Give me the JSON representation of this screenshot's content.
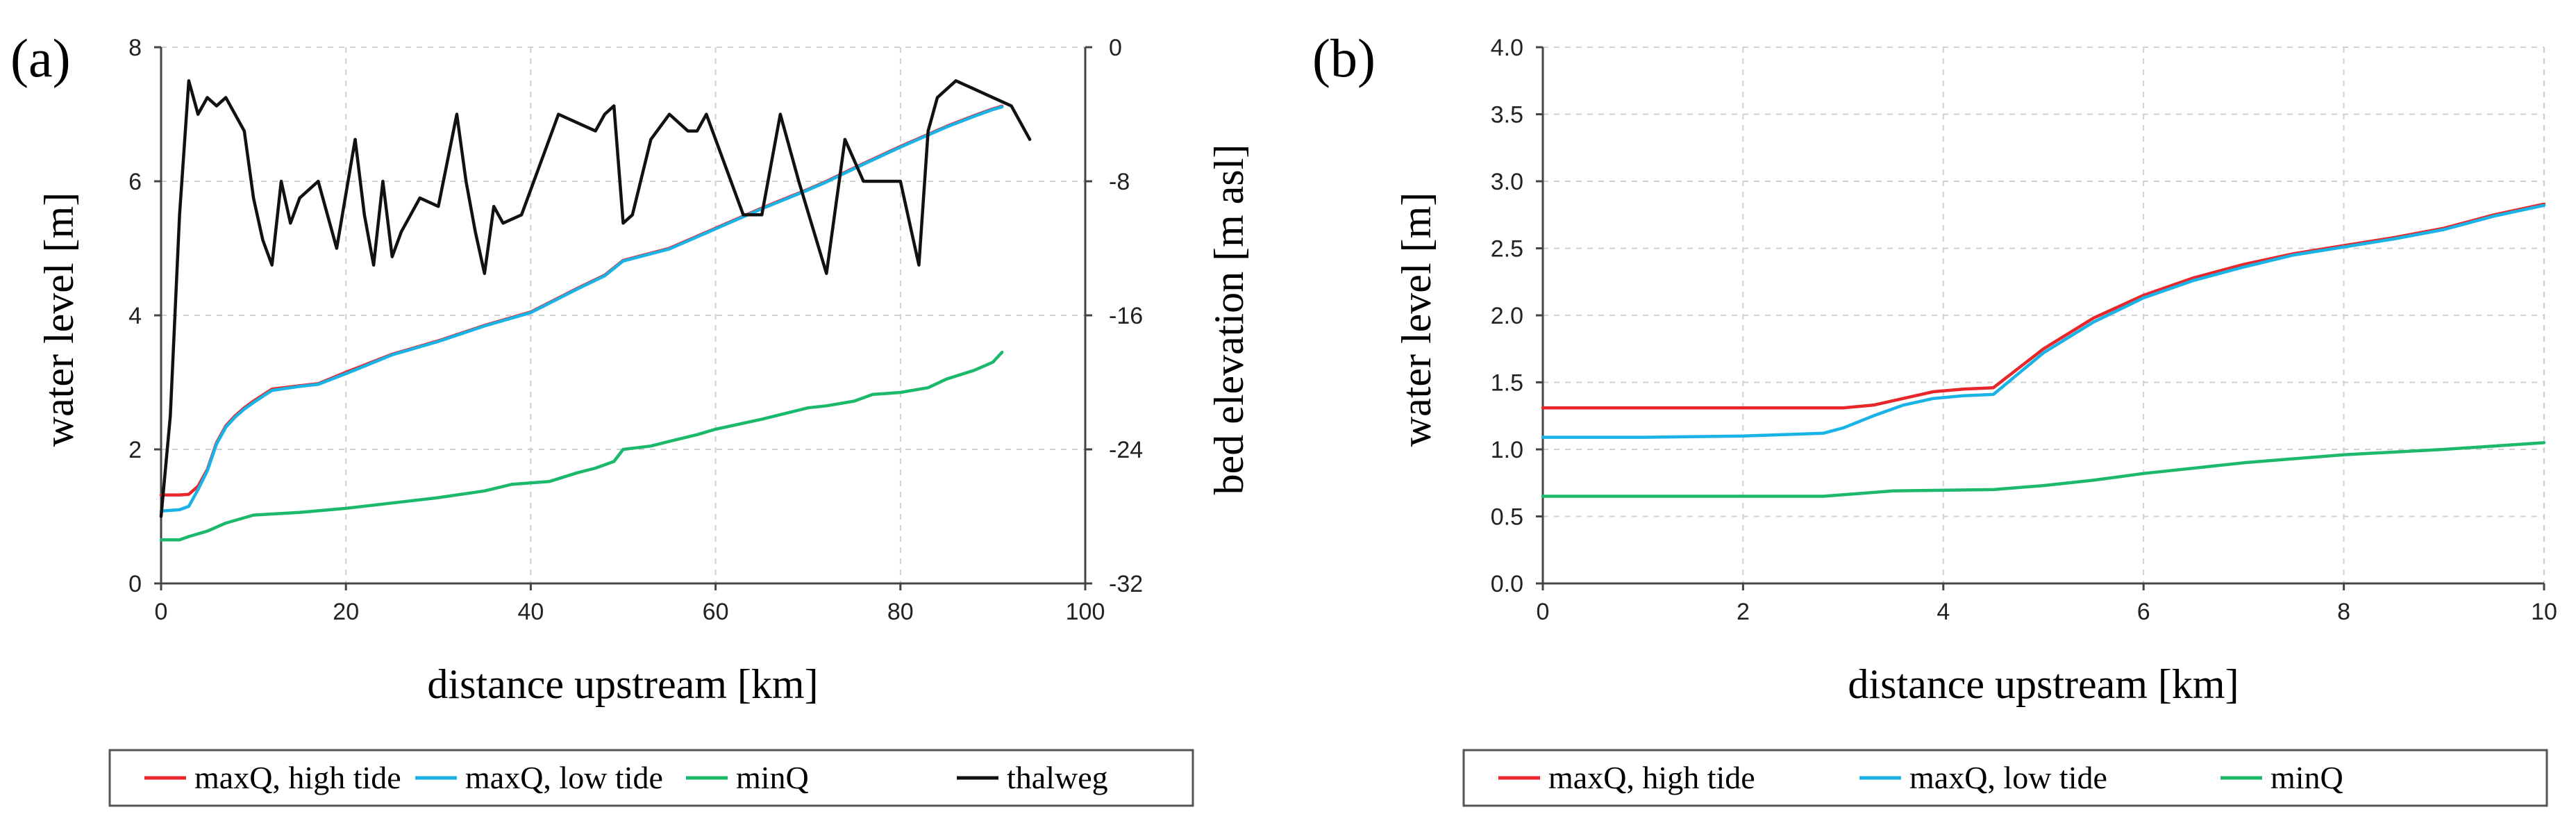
{
  "chart_data": [
    {
      "type": "line",
      "panel_label": "(a)",
      "xlabel": "distance upstream [km]",
      "ylabel": "water level [m]",
      "y2label": "bed elevation [m asl]",
      "xlim": [
        0,
        100
      ],
      "ylim": [
        0,
        8
      ],
      "y2lim": [
        -32,
        0
      ],
      "xticks": [
        0,
        20,
        40,
        60,
        80,
        100
      ],
      "yticks": [
        0,
        2,
        4,
        6,
        8
      ],
      "y2ticks": [
        -32,
        -24,
        -16,
        -8,
        0
      ],
      "grid": true,
      "legend_position": "bottom",
      "series": [
        {
          "name": "maxQ, high tide",
          "color": "#e8262b",
          "axis": "left",
          "x": [
            0,
            2,
            3,
            4,
            5,
            6,
            7,
            8,
            9,
            10,
            12,
            15,
            17,
            20,
            25,
            30,
            35,
            40,
            45,
            48,
            50,
            55,
            60,
            65,
            70,
            72,
            75,
            80,
            85,
            88,
            90,
            91
          ],
          "y": [
            1.32,
            1.32,
            1.33,
            1.45,
            1.7,
            2.1,
            2.35,
            2.5,
            2.62,
            2.72,
            2.9,
            2.95,
            2.98,
            3.15,
            3.42,
            3.62,
            3.85,
            4.05,
            4.4,
            4.6,
            4.82,
            5.0,
            5.3,
            5.6,
            5.88,
            6.0,
            6.2,
            6.52,
            6.82,
            6.98,
            7.08,
            7.12
          ]
        },
        {
          "name": "maxQ, low tide",
          "color": "#1ab3e6",
          "axis": "left",
          "x": [
            0,
            2,
            3,
            4,
            5,
            6,
            7,
            8,
            9,
            10,
            12,
            15,
            17,
            20,
            25,
            30,
            35,
            40,
            45,
            48,
            50,
            55,
            60,
            65,
            70,
            72,
            75,
            80,
            85,
            88,
            90,
            91
          ],
          "y": [
            1.08,
            1.1,
            1.15,
            1.4,
            1.68,
            2.08,
            2.33,
            2.48,
            2.6,
            2.7,
            2.88,
            2.94,
            2.97,
            3.13,
            3.41,
            3.61,
            3.84,
            4.04,
            4.39,
            4.59,
            4.81,
            4.99,
            5.29,
            5.59,
            5.87,
            5.99,
            6.19,
            6.51,
            6.81,
            6.97,
            7.07,
            7.11
          ]
        },
        {
          "name": "minQ",
          "color": "#1cb86b",
          "axis": "left",
          "x": [
            0,
            2,
            3,
            5,
            7,
            10,
            15,
            20,
            25,
            30,
            35,
            38,
            42,
            45,
            47,
            49,
            50,
            53,
            55,
            58,
            60,
            65,
            70,
            72,
            75,
            77,
            80,
            83,
            85,
            88,
            90,
            91
          ],
          "y": [
            0.65,
            0.65,
            0.7,
            0.78,
            0.9,
            1.02,
            1.06,
            1.12,
            1.2,
            1.28,
            1.38,
            1.48,
            1.52,
            1.65,
            1.72,
            1.82,
            2.0,
            2.05,
            2.12,
            2.22,
            2.3,
            2.45,
            2.62,
            2.65,
            2.72,
            2.82,
            2.85,
            2.92,
            3.05,
            3.18,
            3.3,
            3.45
          ]
        },
        {
          "name": "thalweg",
          "color": "#111111",
          "axis": "right",
          "x": [
            0,
            1,
            2,
            3,
            4,
            5,
            6,
            7,
            9,
            10,
            11,
            12,
            13,
            14,
            15,
            17,
            19,
            21,
            22,
            23,
            24,
            25,
            26,
            28,
            30,
            32,
            33,
            34,
            35,
            36,
            37,
            39,
            43,
            45,
            47,
            48,
            49,
            50,
            51,
            53,
            55,
            57,
            58,
            59,
            63,
            65,
            67,
            69,
            72,
            74,
            76,
            77,
            78,
            80,
            82,
            83,
            84,
            86,
            88,
            90,
            92,
            94
          ],
          "y": [
            -28,
            -22,
            -10,
            -2,
            -4,
            -3,
            -3.5,
            -3,
            -5,
            -9,
            -11.5,
            -13,
            -8,
            -10.5,
            -9,
            -8,
            -12,
            -5.5,
            -10,
            -13,
            -8,
            -12.5,
            -11,
            -9,
            -9.5,
            -4,
            -8,
            -11,
            -13.5,
            -9.5,
            -10.5,
            -10,
            -4,
            -4.5,
            -5,
            -4,
            -3.5,
            -10.5,
            -10,
            -5.5,
            -4,
            -5,
            -5,
            -4,
            -10,
            -10,
            -4,
            -8,
            -13.5,
            -5.5,
            -8,
            -8,
            -8,
            -8,
            -13,
            -5,
            -3,
            -2,
            -2.5,
            -3,
            -3.5,
            -5.5
          ]
        }
      ]
    },
    {
      "type": "line",
      "panel_label": "(b)",
      "xlabel": "distance upstream [km]",
      "ylabel": "water level [m]",
      "xlim": [
        0,
        10
      ],
      "ylim": [
        0,
        4
      ],
      "xticks": [
        0,
        2,
        4,
        6,
        8,
        10
      ],
      "yticks": [
        0.0,
        0.5,
        1.0,
        1.5,
        2.0,
        2.5,
        3.0,
        3.5,
        4.0
      ],
      "ytick_labels": [
        "0.0",
        "0.5",
        "1.0",
        "1.5",
        "2.0",
        "2.5",
        "3.0",
        "3.5",
        "4.0"
      ],
      "grid": true,
      "legend_position": "bottom",
      "series": [
        {
          "name": "maxQ, high tide",
          "color": "#e8262b",
          "x": [
            0,
            1,
            2,
            3,
            3.3,
            3.6,
            3.9,
            4.2,
            4.5,
            5,
            5.5,
            6,
            6.5,
            7,
            7.5,
            8,
            8.5,
            9,
            9.5,
            10
          ],
          "y": [
            1.31,
            1.31,
            1.31,
            1.31,
            1.33,
            1.38,
            1.43,
            1.45,
            1.46,
            1.75,
            1.98,
            2.15,
            2.28,
            2.38,
            2.46,
            2.52,
            2.58,
            2.65,
            2.75,
            2.83
          ]
        },
        {
          "name": "maxQ, low tide",
          "color": "#1ab3e6",
          "x": [
            0,
            1,
            2,
            2.8,
            3,
            3.3,
            3.6,
            3.9,
            4.2,
            4.5,
            5,
            5.5,
            6,
            6.5,
            7,
            7.5,
            8,
            8.5,
            9,
            9.5,
            10
          ],
          "y": [
            1.09,
            1.09,
            1.1,
            1.12,
            1.16,
            1.25,
            1.33,
            1.38,
            1.4,
            1.41,
            1.72,
            1.95,
            2.13,
            2.26,
            2.36,
            2.45,
            2.51,
            2.57,
            2.64,
            2.74,
            2.82
          ]
        },
        {
          "name": "minQ",
          "color": "#1cb86b",
          "x": [
            0,
            1,
            2,
            2.8,
            3.5,
            4.5,
            5,
            5.5,
            6,
            7,
            8,
            9,
            10
          ],
          "y": [
            0.65,
            0.65,
            0.65,
            0.65,
            0.69,
            0.7,
            0.73,
            0.77,
            0.82,
            0.9,
            0.96,
            1.0,
            1.05
          ]
        }
      ]
    }
  ]
}
